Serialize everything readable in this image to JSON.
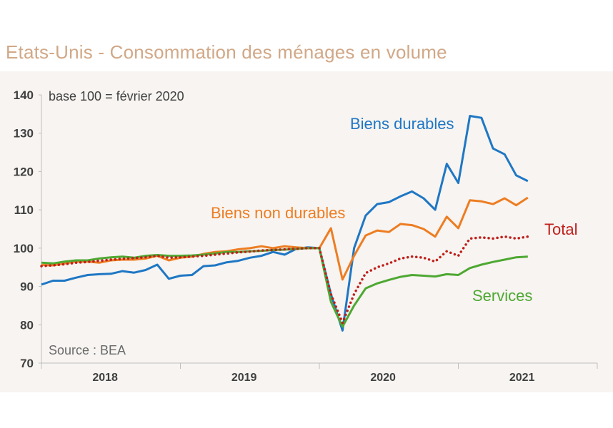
{
  "title": "Etats-Unis - Consommation des ménages en volume",
  "chart_data": {
    "type": "line",
    "title": "Etats-Unis - Consommation des ménages en volume",
    "base_note": "base 100 = février 2020",
    "source": "Source : BEA",
    "ylim": [
      70,
      140
    ],
    "yticks": [
      "140",
      "130",
      "120",
      "110",
      "100",
      "90",
      "80",
      "70"
    ],
    "ytick_values": [
      140,
      130,
      120,
      110,
      100,
      90,
      80,
      70
    ],
    "xlim": [
      0,
      48
    ],
    "year_labels": [
      "2018",
      "2019",
      "2020",
      "2021"
    ],
    "year_label_positions": [
      5.5,
      17.5,
      29.5,
      41.5
    ],
    "year_boundaries": [
      0,
      12,
      24,
      36,
      48
    ],
    "series": [
      {
        "name": "Biens durables",
        "color": "#1f77c4",
        "style": "solid",
        "x": [
          0,
          1,
          2,
          3,
          4,
          5,
          6,
          7,
          8,
          9,
          10,
          11,
          12,
          13,
          14,
          15,
          16,
          17,
          18,
          19,
          20,
          21,
          22,
          23,
          24,
          25,
          26,
          27,
          28,
          29,
          30,
          31,
          32,
          33,
          34,
          35,
          36,
          37,
          38,
          39,
          40,
          41,
          42
        ],
        "values": [
          90.5,
          91.5,
          91.5,
          92.3,
          93.0,
          93.2,
          93.3,
          94.0,
          93.6,
          94.3,
          95.7,
          92.0,
          92.8,
          93.0,
          95.3,
          95.5,
          96.3,
          96.7,
          97.5,
          98.0,
          99.0,
          98.3,
          99.8,
          100.2,
          100.0,
          88.0,
          78.5,
          100.0,
          108.5,
          111.5,
          112.0,
          113.5,
          114.8,
          113.0,
          110.0,
          122.0,
          117.0,
          134.5,
          134.0,
          126.0,
          124.5,
          119.0,
          117.5
        ]
      },
      {
        "name": "Biens non durables",
        "color": "#ed7d22",
        "style": "solid",
        "x": [
          0,
          1,
          2,
          3,
          4,
          5,
          6,
          7,
          8,
          9,
          10,
          11,
          12,
          13,
          14,
          15,
          16,
          17,
          18,
          19,
          20,
          21,
          22,
          23,
          24,
          25,
          26,
          27,
          28,
          29,
          30,
          31,
          32,
          33,
          34,
          35,
          36,
          37,
          38,
          39,
          40,
          41,
          42
        ],
        "values": [
          95.6,
          95.5,
          96.0,
          96.5,
          96.5,
          96.2,
          96.8,
          97.0,
          97.0,
          97.3,
          98.0,
          96.8,
          97.5,
          97.8,
          98.5,
          99.0,
          99.2,
          99.7,
          100.0,
          100.5,
          100.0,
          100.5,
          100.2,
          100.0,
          100.0,
          105.2,
          91.8,
          98.0,
          103.3,
          104.6,
          104.2,
          106.3,
          106.0,
          105.0,
          103.0,
          108.2,
          105.2,
          112.5,
          112.2,
          111.5,
          113.0,
          111.2,
          113.2
        ]
      },
      {
        "name": "Total",
        "color": "#c0201c",
        "style": "dotted",
        "x": [
          0,
          1,
          2,
          3,
          4,
          5,
          6,
          7,
          8,
          9,
          10,
          11,
          12,
          13,
          14,
          15,
          16,
          17,
          18,
          19,
          20,
          21,
          22,
          23,
          24,
          25,
          26,
          27,
          28,
          29,
          30,
          31,
          32,
          33,
          34,
          35,
          36,
          37,
          38,
          39,
          40,
          41,
          42
        ],
        "values": [
          95.3,
          95.5,
          95.8,
          96.2,
          96.4,
          96.7,
          97.0,
          97.2,
          97.4,
          97.6,
          98.0,
          97.5,
          97.6,
          97.8,
          98.0,
          98.3,
          98.6,
          98.9,
          99.1,
          99.4,
          99.5,
          99.7,
          99.8,
          100.0,
          100.0,
          88.0,
          80.5,
          88.0,
          93.5,
          95.0,
          96.0,
          97.3,
          97.8,
          97.5,
          96.5,
          99.2,
          98.0,
          102.5,
          102.8,
          102.5,
          103.0,
          102.5,
          103.0
        ]
      },
      {
        "name": "Services",
        "color": "#4ea832",
        "style": "solid",
        "x": [
          0,
          1,
          2,
          3,
          4,
          5,
          6,
          7,
          8,
          9,
          10,
          11,
          12,
          13,
          14,
          15,
          16,
          17,
          18,
          19,
          20,
          21,
          22,
          23,
          24,
          25,
          26,
          27,
          28,
          29,
          30,
          31,
          32,
          33,
          34,
          35,
          36,
          37,
          38,
          39,
          40,
          41,
          42
        ],
        "values": [
          96.2,
          96.0,
          96.5,
          96.8,
          96.8,
          97.3,
          97.6,
          97.8,
          97.5,
          98.0,
          98.2,
          98.0,
          98.0,
          98.1,
          98.3,
          98.6,
          99.0,
          99.0,
          99.2,
          99.3,
          99.5,
          99.6,
          99.8,
          100.0,
          100.0,
          86.0,
          79.5,
          85.0,
          89.5,
          90.8,
          91.7,
          92.5,
          93.0,
          92.8,
          92.6,
          93.2,
          93.0,
          94.8,
          95.7,
          96.4,
          97.0,
          97.6,
          97.8
        ]
      }
    ],
    "annotations": [
      {
        "text": "Biens durables",
        "series": "Biens durables"
      },
      {
        "text": "Biens non durables",
        "series": "Biens non durables"
      },
      {
        "text": "Total",
        "series": "Total"
      },
      {
        "text": "Services",
        "series": "Services"
      }
    ]
  }
}
